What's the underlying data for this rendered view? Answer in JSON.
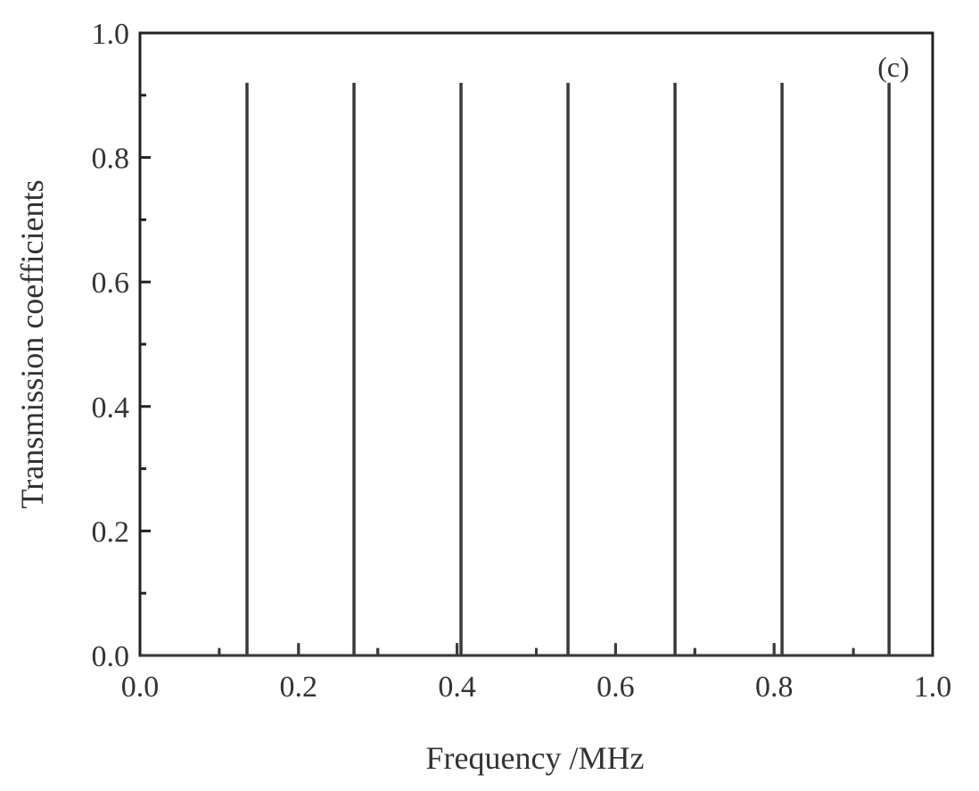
{
  "chart_data": {
    "type": "line",
    "xlabel": "Frequency /MHz",
    "ylabel": "Transmission coefficients",
    "annotation": "(c)",
    "xlim": [
      0.0,
      1.0
    ],
    "ylim": [
      0.0,
      1.0
    ],
    "x_ticks": [
      0.0,
      0.2,
      0.4,
      0.6,
      0.8,
      1.0
    ],
    "y_ticks": [
      0.0,
      0.2,
      0.4,
      0.6,
      0.8,
      1.0
    ],
    "x_tick_labels": [
      "0.0",
      "0.2",
      "0.4",
      "0.6",
      "0.8",
      "1.0"
    ],
    "y_tick_labels": [
      "0.0",
      "0.2",
      "0.4",
      "0.6",
      "0.8",
      "1.0"
    ],
    "grid": false,
    "series": [
      {
        "color": "#3a3a3a",
        "peaks": [
          {
            "x": 0.135,
            "y": 0.92
          },
          {
            "x": 0.27,
            "y": 0.92
          },
          {
            "x": 0.405,
            "y": 0.92
          },
          {
            "x": 0.54,
            "y": 0.92
          },
          {
            "x": 0.675,
            "y": 0.92
          },
          {
            "x": 0.81,
            "y": 0.92
          },
          {
            "x": 0.945,
            "y": 0.92
          }
        ],
        "minor_bumps": [
          {
            "x": 0.1,
            "y": 0.012
          },
          {
            "x": 0.2,
            "y": 0.02
          },
          {
            "x": 0.3,
            "y": 0.012
          },
          {
            "x": 0.4,
            "y": 0.02
          },
          {
            "x": 0.5,
            "y": 0.012
          },
          {
            "x": 0.6,
            "y": 0.02
          },
          {
            "x": 0.7,
            "y": 0.012
          },
          {
            "x": 0.8,
            "y": 0.02
          },
          {
            "x": 0.9,
            "y": 0.012
          }
        ]
      }
    ]
  }
}
